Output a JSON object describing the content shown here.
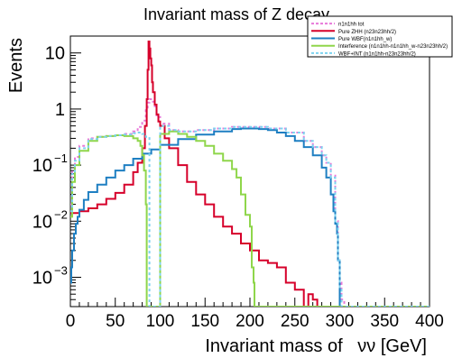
{
  "chart_data": {
    "type": "line",
    "title": "Invariant mass of Z decay",
    "xlabel": "Invariant mass of   νν [GeV]",
    "ylabel": "Events",
    "xlim": [
      0,
      400
    ],
    "ylim": [
      0.0003,
      20
    ],
    "log_y": true,
    "grid": false,
    "legend_position": "top-right",
    "x_ticks": [
      "0",
      "50",
      "100",
      "150",
      "200",
      "250",
      "300",
      "350",
      "400"
    ],
    "y_ticks": [
      {
        "label": "10",
        "value": 10
      },
      {
        "label": "1",
        "value": 1
      },
      {
        "label": "10",
        "exp": "−1",
        "value": 0.1
      },
      {
        "label": "10",
        "exp": "−2",
        "value": 0.01
      },
      {
        "label": "10",
        "exp": "−3",
        "value": 0.001
      }
    ],
    "series": [
      {
        "name": "n1n1hh tot",
        "color": "#e879d9",
        "style": "dashed",
        "x": [
          0,
          2,
          5,
          10,
          20,
          30,
          40,
          50,
          60,
          70,
          75,
          80,
          84,
          86,
          88,
          90,
          92,
          94,
          96,
          100,
          110,
          120,
          140,
          160,
          180,
          200,
          220,
          240,
          260,
          270,
          280,
          285,
          290,
          295,
          298,
          300,
          302,
          305,
          400
        ],
        "values": [
          0.02,
          0.08,
          0.14,
          0.22,
          0.3,
          0.32,
          0.33,
          0.34,
          0.36,
          0.4,
          0.48,
          0.62,
          0.95,
          1.3,
          1.5,
          1.5,
          1.35,
          1.0,
          0.72,
          0.55,
          0.42,
          0.4,
          0.42,
          0.45,
          0.48,
          0.48,
          0.45,
          0.38,
          0.27,
          0.21,
          0.15,
          0.11,
          0.065,
          0.01,
          0.002,
          0.0008,
          0.0004,
          0.0003,
          0.0003
        ]
      },
      {
        "name": "Pure ZHH (n23n23hh/2)",
        "color": "#d6002a",
        "style": "solid",
        "x": [
          0,
          10,
          20,
          30,
          40,
          50,
          60,
          70,
          75,
          80,
          83,
          85,
          86,
          87,
          88,
          89,
          90,
          91,
          92,
          94,
          96,
          98,
          100,
          105,
          110,
          120,
          130,
          140,
          150,
          160,
          170,
          180,
          190,
          200,
          210,
          220,
          230,
          240,
          250,
          260,
          265,
          270,
          275,
          280,
          400
        ],
        "values": [
          0.014,
          0.015,
          0.017,
          0.02,
          0.025,
          0.032,
          0.045,
          0.075,
          0.11,
          0.2,
          0.5,
          1.5,
          5.0,
          16.0,
          12.0,
          8.0,
          6.0,
          3.0,
          2.0,
          1.2,
          0.8,
          0.6,
          0.5,
          0.3,
          0.2,
          0.1,
          0.05,
          0.03,
          0.02,
          0.012,
          0.008,
          0.006,
          0.004,
          0.003,
          0.002,
          0.0018,
          0.0015,
          0.0008,
          0.0006,
          0.0003,
          0.0005,
          0.0004,
          0.0003,
          0.0003,
          0.0003
        ]
      },
      {
        "name": "Pure WBF(n1n1hh_w)",
        "color": "#1e7fc2",
        "style": "solid",
        "x": [
          0,
          1,
          2,
          4,
          6,
          8,
          10,
          15,
          20,
          30,
          40,
          50,
          60,
          70,
          80,
          90,
          100,
          120,
          140,
          160,
          180,
          190,
          200,
          210,
          220,
          230,
          240,
          250,
          260,
          270,
          280,
          285,
          290,
          293,
          295,
          297,
          298,
          300,
          302,
          400
        ],
        "values": [
          0.0008,
          0.0015,
          0.003,
          0.006,
          0.009,
          0.012,
          0.016,
          0.024,
          0.033,
          0.045,
          0.06,
          0.08,
          0.1,
          0.13,
          0.16,
          0.19,
          0.23,
          0.29,
          0.35,
          0.4,
          0.44,
          0.45,
          0.45,
          0.44,
          0.42,
          0.38,
          0.33,
          0.27,
          0.21,
          0.15,
          0.09,
          0.06,
          0.03,
          0.015,
          0.009,
          0.006,
          0.002,
          0.0003,
          0.0003,
          0.0003
        ]
      },
      {
        "name": "Interference (n1n1hh-n1n1hh_w-n23n23hh/2)",
        "color": "#8fd64b",
        "style": "solid",
        "x": [
          0,
          2,
          5,
          10,
          20,
          30,
          40,
          50,
          60,
          70,
          75,
          78,
          80,
          82,
          84,
          85,
          86,
          87,
          98,
          100,
          110,
          120,
          130,
          140,
          150,
          160,
          170,
          180,
          185,
          190,
          195,
          200,
          202,
          204,
          205,
          206,
          400
        ],
        "values": [
          0.012,
          0.05,
          0.1,
          0.18,
          0.27,
          0.32,
          0.33,
          0.34,
          0.33,
          0.3,
          0.27,
          0.22,
          0.15,
          0.08,
          0.02,
          0.0003,
          0.0003,
          0.0003,
          0.0003,
          0.36,
          0.4,
          0.36,
          0.32,
          0.27,
          0.22,
          0.16,
          0.12,
          0.085,
          0.06,
          0.03,
          0.013,
          0.008,
          0.0015,
          0.0008,
          0.0003,
          0.0003,
          0.0003
        ]
      },
      {
        "name": "WBF+INT (n1n1hh-n23n23hh/2)",
        "color": "#7dd3f0",
        "style": "dashed",
        "x": [
          0,
          2,
          5,
          10,
          20,
          30,
          40,
          50,
          60,
          70,
          75,
          80,
          84,
          88,
          90,
          92,
          94,
          96,
          98,
          100,
          110,
          120,
          140,
          160,
          180,
          200,
          220,
          240,
          260,
          270,
          280,
          285,
          290,
          295,
          298,
          300,
          302,
          400
        ],
        "values": [
          0.015,
          0.07,
          0.12,
          0.2,
          0.29,
          0.32,
          0.33,
          0.34,
          0.35,
          0.37,
          0.38,
          0.36,
          0.32,
          0.0003,
          0.0003,
          0.0003,
          0.0003,
          0.0003,
          0.0003,
          0.5,
          0.42,
          0.4,
          0.42,
          0.45,
          0.48,
          0.48,
          0.45,
          0.38,
          0.27,
          0.21,
          0.15,
          0.11,
          0.06,
          0.01,
          0.002,
          0.0006,
          0.0003,
          0.0003
        ]
      }
    ]
  }
}
